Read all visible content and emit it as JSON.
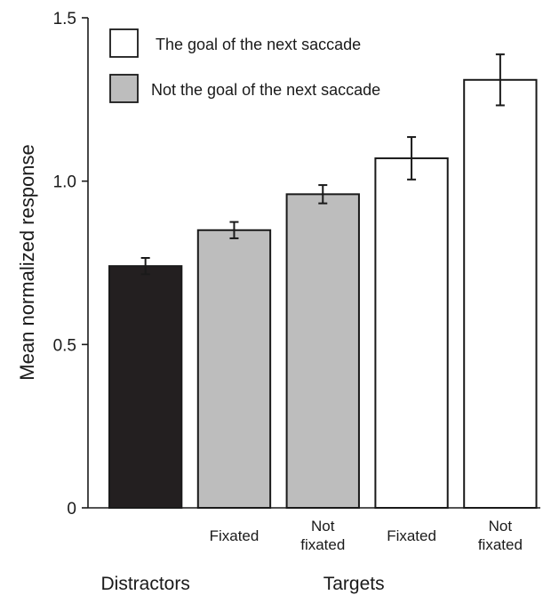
{
  "chart_data": {
    "type": "bar",
    "title": "",
    "xlabel": "",
    "ylabel": "Mean normalized response",
    "ylim": [
      0,
      1.5
    ],
    "yticks": [
      "0",
      "0.5",
      "1.0",
      "1.5"
    ],
    "grid": false,
    "legend_position": "top-left",
    "legend": [
      {
        "label": "The goal of the next saccade",
        "color": "#ffffff"
      },
      {
        "label": "Not the goal of  the next saccade",
        "color": "#bdbdbd"
      }
    ],
    "bars": [
      {
        "label": "",
        "group": "Distractors",
        "value": 0.74,
        "error": 0.025,
        "color": "#231f20"
      },
      {
        "label": "Fixated",
        "group": "Targets",
        "value": 0.85,
        "error": 0.025,
        "color": "#bdbdbd"
      },
      {
        "label": "Not\nfixated",
        "group": "Targets",
        "value": 0.96,
        "error": 0.028,
        "color": "#bdbdbd"
      },
      {
        "label": "Fixated",
        "group": "Targets",
        "value": 1.07,
        "error": 0.065,
        "color": "#ffffff"
      },
      {
        "label": "Not\nfixated",
        "group": "Targets",
        "value": 1.31,
        "error": 0.078,
        "color": "#ffffff"
      }
    ],
    "groups": [
      {
        "label": "Distractors",
        "bars": [
          0
        ]
      },
      {
        "label": "Targets",
        "bars": [
          1,
          2,
          3,
          4
        ]
      }
    ]
  }
}
